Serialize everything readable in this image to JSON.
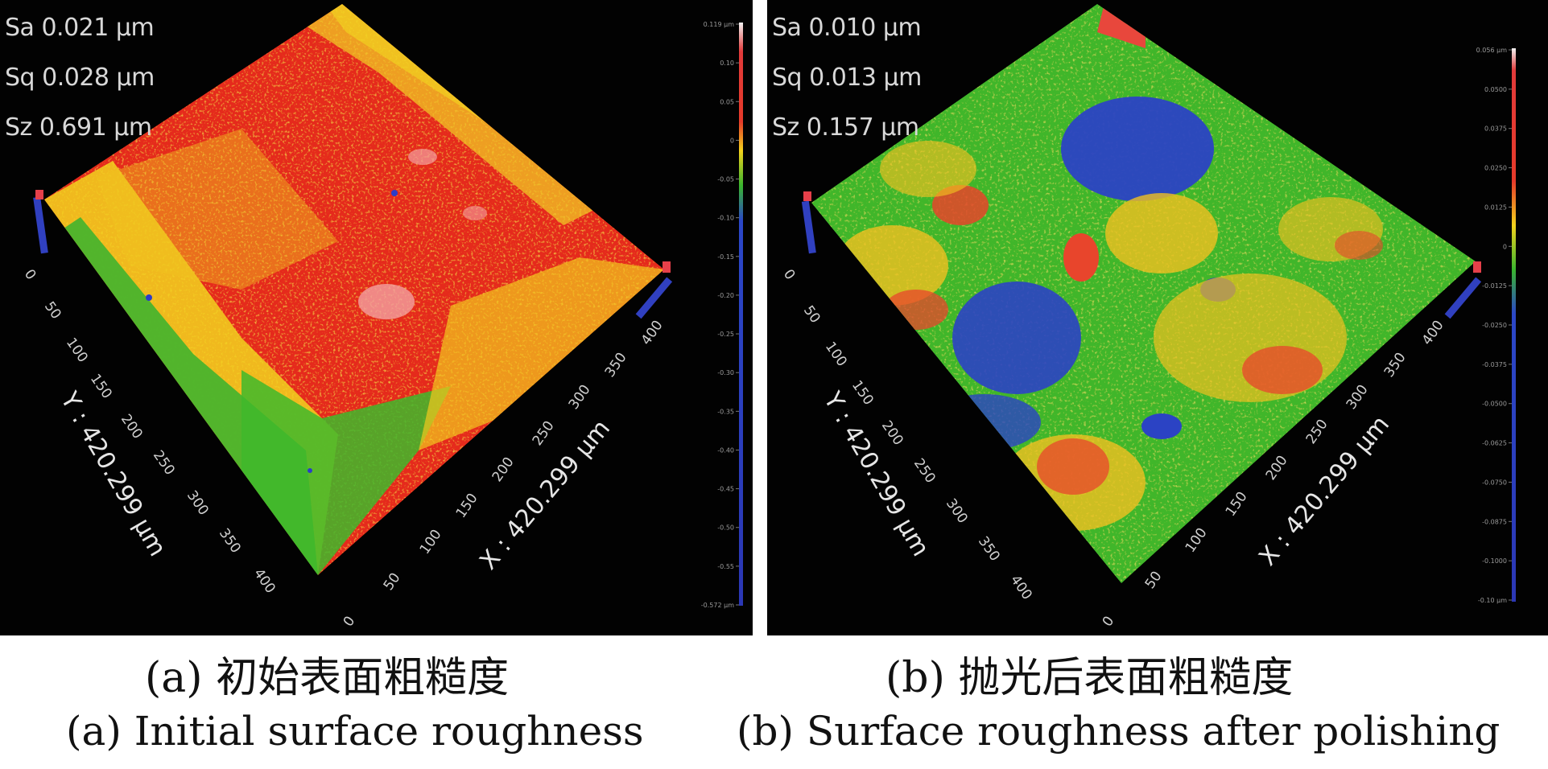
{
  "panels": [
    {
      "id": "a",
      "stats": {
        "sa": "Sa 0.021 μm",
        "sq": "Sq 0.028 μm",
        "sz": "Sz 0.691 μm"
      },
      "x_axis_title": "X : 420.299 μm",
      "y_axis_title": "Y : 420.299 μm",
      "x_ticks": [
        "0",
        "50",
        "100",
        "150",
        "200",
        "250",
        "300",
        "350",
        "400"
      ],
      "y_ticks": [
        "0",
        "50",
        "100",
        "150",
        "200",
        "250",
        "300",
        "350",
        "400"
      ],
      "colorbar_ticks": [
        "0.119 μm",
        "0.10",
        "0.05",
        "0",
        "-0.05",
        "-0.10",
        "-0.15",
        "-0.20",
        "-0.25",
        "-0.30",
        "-0.35",
        "-0.40",
        "-0.45",
        "-0.50",
        "-0.55",
        "-0.572 μm"
      ],
      "caption_zh": "(a) 初始表面粗糙度",
      "caption_en": "(a) Initial surface roughness",
      "dominant_colors": [
        "#e8261c",
        "#f4d21a",
        "#3fba2c",
        "#2b3cc8"
      ]
    },
    {
      "id": "b",
      "stats": {
        "sa": "Sa 0.010 μm",
        "sq": "Sq 0.013 μm",
        "sz": "Sz 0.157 μm"
      },
      "x_axis_title": "X : 420.299 μm",
      "y_axis_title": "Y : 420.299 μm",
      "x_ticks": [
        "0",
        "50",
        "100",
        "150",
        "200",
        "250",
        "300",
        "350",
        "400"
      ],
      "y_ticks": [
        "0",
        "50",
        "100",
        "150",
        "200",
        "250",
        "300",
        "350",
        "400"
      ],
      "colorbar_ticks": [
        "0.056 μm",
        "0.0500",
        "0.0375",
        "0.0250",
        "0.0125",
        "0",
        "-0.0125",
        "-0.0250",
        "-0.0375",
        "-0.0500",
        "-0.0625",
        "-0.0750",
        "-0.0875",
        "-0.1000",
        "-0.10 μm"
      ],
      "caption_zh": "(b) 抛光后表面粗糙度",
      "caption_en": "(b) Surface roughness after polishing",
      "dominant_colors": [
        "#3fba2c",
        "#f4d21a",
        "#e8261c",
        "#2b3cc8"
      ]
    }
  ]
}
